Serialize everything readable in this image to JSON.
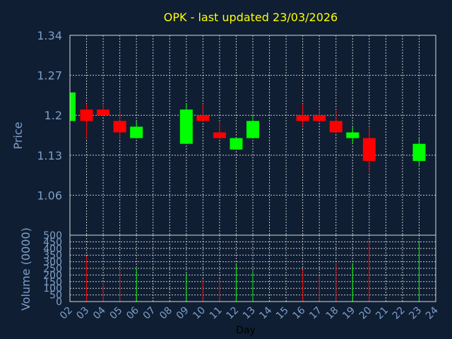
{
  "chart_data": [
    {
      "type": "candlestick",
      "title": "OPK - last updated 23/03/2026",
      "xlabel": "",
      "ylabel": "Price",
      "ylim": [
        0.99,
        1.34
      ],
      "yticks": [
        "1.34",
        "1.27",
        "1.2",
        "1.13",
        "1.06"
      ],
      "ytick_values": [
        1.34,
        1.27,
        1.2,
        1.13,
        1.06
      ],
      "grid": true,
      "up_color": "#00ff00",
      "down_color": "#ff0000",
      "candles": [
        {
          "day": "02",
          "open": 1.19,
          "high": 1.24,
          "low": 1.19,
          "close": 1.24
        },
        {
          "day": "03",
          "open": 1.21,
          "high": 1.22,
          "low": 1.16,
          "close": 1.19
        },
        {
          "day": "04",
          "open": 1.21,
          "high": 1.22,
          "low": 1.2,
          "close": 1.2
        },
        {
          "day": "05",
          "open": 1.19,
          "high": 1.21,
          "low": 1.16,
          "close": 1.17
        },
        {
          "day": "06",
          "open": 1.16,
          "high": 1.19,
          "low": 1.16,
          "close": 1.18
        },
        {
          "day": "09",
          "open": 1.15,
          "high": 1.22,
          "low": 1.15,
          "close": 1.21
        },
        {
          "day": "10",
          "open": 1.2,
          "high": 1.22,
          "low": 1.19,
          "close": 1.19
        },
        {
          "day": "11",
          "open": 1.17,
          "high": 1.19,
          "low": 1.16,
          "close": 1.16
        },
        {
          "day": "12",
          "open": 1.14,
          "high": 1.16,
          "low": 1.14,
          "close": 1.16
        },
        {
          "day": "13",
          "open": 1.16,
          "high": 1.2,
          "low": 1.16,
          "close": 1.19
        },
        {
          "day": "16",
          "open": 1.2,
          "high": 1.22,
          "low": 1.18,
          "close": 1.19
        },
        {
          "day": "17",
          "open": 1.2,
          "high": 1.21,
          "low": 1.19,
          "close": 1.19
        },
        {
          "day": "18",
          "open": 1.19,
          "high": 1.21,
          "low": 1.17,
          "close": 1.17
        },
        {
          "day": "19",
          "open": 1.16,
          "high": 1.18,
          "low": 1.15,
          "close": 1.17
        },
        {
          "day": "20",
          "open": 1.16,
          "high": 1.18,
          "low": 1.1,
          "close": 1.12
        },
        {
          "day": "23",
          "open": 1.12,
          "high": 1.16,
          "low": 1.11,
          "close": 1.15
        }
      ]
    },
    {
      "type": "bar",
      "xlabel": "Day",
      "ylabel": "Volume (0000)",
      "ylim": [
        0,
        500
      ],
      "yticks": [
        "500",
        "450",
        "400",
        "350",
        "300",
        "250",
        "200",
        "150",
        "100",
        "50",
        "0"
      ],
      "ytick_values": [
        500,
        450,
        400,
        350,
        300,
        250,
        200,
        150,
        100,
        50,
        0
      ],
      "categories": [
        "02",
        "03",
        "04",
        "05",
        "06",
        "07",
        "08",
        "09",
        "10",
        "11",
        "12",
        "13",
        "14",
        "15",
        "16",
        "17",
        "18",
        "19",
        "20",
        "21",
        "22",
        "23",
        "24"
      ],
      "bars": [
        {
          "day": "03",
          "value": 340,
          "direction": "down"
        },
        {
          "day": "04",
          "value": 140,
          "direction": "down"
        },
        {
          "day": "05",
          "value": 240,
          "direction": "down"
        },
        {
          "day": "06",
          "value": 250,
          "direction": "up"
        },
        {
          "day": "09",
          "value": 210,
          "direction": "up"
        },
        {
          "day": "10",
          "value": 170,
          "direction": "down"
        },
        {
          "day": "11",
          "value": 170,
          "direction": "down"
        },
        {
          "day": "12",
          "value": 280,
          "direction": "up"
        },
        {
          "day": "13",
          "value": 230,
          "direction": "up"
        },
        {
          "day": "16",
          "value": 240,
          "direction": "down"
        },
        {
          "day": "17",
          "value": 190,
          "direction": "down"
        },
        {
          "day": "18",
          "value": 290,
          "direction": "down"
        },
        {
          "day": "19",
          "value": 290,
          "direction": "up"
        },
        {
          "day": "20",
          "value": 450,
          "direction": "down"
        },
        {
          "day": "23",
          "value": 450,
          "direction": "up"
        }
      ]
    }
  ],
  "colors": {
    "background": "#0f1e33",
    "plot_border": "#d8d8d8",
    "grid": "#c8c8c8",
    "title": "#ffff00",
    "axis_text": "#7f9fc8",
    "xlabel": "#000000"
  }
}
